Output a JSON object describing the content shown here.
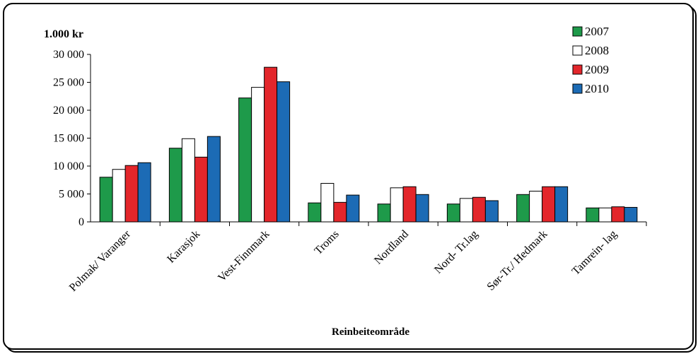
{
  "chart_data": {
    "type": "bar",
    "unit_label": "1.000 kr",
    "xlabel": "Reinbeiteområde",
    "ylabel": "",
    "ylim": [
      0,
      30000
    ],
    "yticks": [
      0,
      5000,
      10000,
      15000,
      20000,
      25000,
      30000
    ],
    "ytick_labels": [
      "0",
      "5 000",
      "10 000",
      "15 000",
      "20 000",
      "25 000",
      "30 000"
    ],
    "categories": [
      "Polmak/ Varanger",
      "Karasjok",
      "Vest-Finnmark",
      "Troms",
      "Nordland",
      "Nord- Tr.lag",
      "Sør-Tr./ Hedmark",
      "Tamrein- lag"
    ],
    "series": [
      {
        "name": "2007",
        "color": "#1e9a4a",
        "values": [
          8000,
          13200,
          22200,
          3400,
          3200,
          3200,
          4900,
          2500
        ]
      },
      {
        "name": "2008",
        "color": "#ffffff",
        "values": [
          9400,
          14900,
          24100,
          6900,
          6100,
          4200,
          5500,
          2500
        ]
      },
      {
        "name": "2009",
        "color": "#e3262b",
        "values": [
          10100,
          11600,
          27700,
          3500,
          6300,
          4400,
          6300,
          2700
        ]
      },
      {
        "name": "2010",
        "color": "#1c6bb5",
        "values": [
          10600,
          15300,
          25100,
          4800,
          4900,
          3800,
          6300,
          2600
        ]
      }
    ],
    "legend": "top-right",
    "grid": false
  }
}
